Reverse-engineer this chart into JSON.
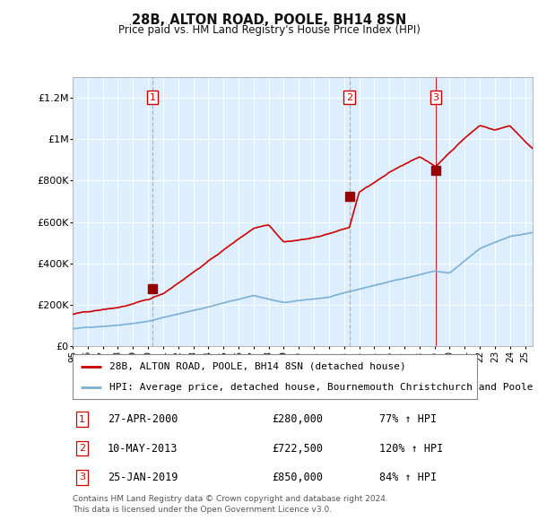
{
  "title": "28B, ALTON ROAD, POOLE, BH14 8SN",
  "subtitle": "Price paid vs. HM Land Registry's House Price Index (HPI)",
  "legend_label_red": "28B, ALTON ROAD, POOLE, BH14 8SN (detached house)",
  "legend_label_blue": "HPI: Average price, detached house, Bournemouth Christchurch and Poole",
  "footnote": "Contains HM Land Registry data © Crown copyright and database right 2024.\nThis data is licensed under the Open Government Licence v3.0.",
  "transactions": [
    {
      "num": 1,
      "date": "27-APR-2000",
      "price": 280000,
      "hpi_pct": "77% ↑ HPI",
      "year": 2000.3
    },
    {
      "num": 2,
      "date": "10-MAY-2013",
      "price": 722500,
      "hpi_pct": "120% ↑ HPI",
      "year": 2013.35
    },
    {
      "num": 3,
      "date": "25-JAN-2019",
      "price": 850000,
      "hpi_pct": "84% ↑ HPI",
      "year": 2019.07
    }
  ],
  "ylim": [
    0,
    1300000
  ],
  "xlim_start": 1995.0,
  "xlim_end": 2025.5,
  "bg_color": "#ddeeff",
  "grid_color": "#ffffff",
  "red_color": "#cc0000",
  "blue_color": "#7ab0d4",
  "tick_label_color": "#222222",
  "yticks": [
    0,
    200000,
    400000,
    600000,
    800000,
    1000000,
    1200000
  ],
  "ytick_labels": [
    "£0",
    "£200K",
    "£400K",
    "£600K",
    "£800K",
    "£1M",
    "£1.2M"
  ]
}
